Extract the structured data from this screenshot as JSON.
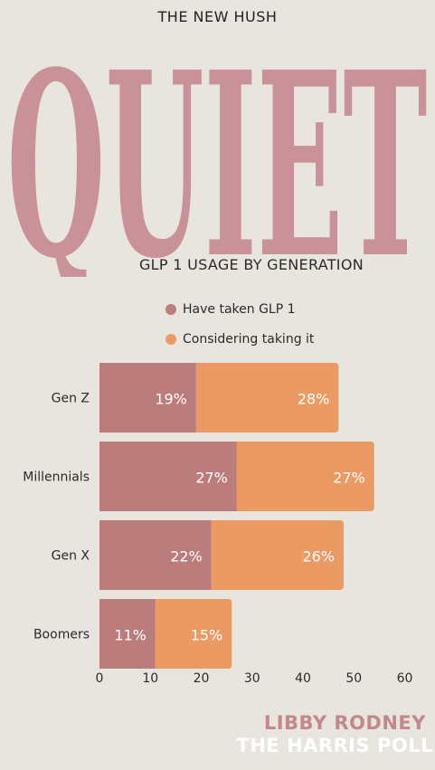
{
  "kicker": "THE NEW HUSH",
  "hero_word": "QUIET",
  "subtitle": "GLP 1 USAGE BY GENERATION",
  "credits": {
    "author": "LIBBY RODNEY",
    "source": "THE HARRIS POLL"
  },
  "colors": {
    "background": "#e8e5df",
    "hero": "#c99198",
    "taken": "#bb7c7c",
    "considering": "#ec9a64",
    "credit": "#c4878c"
  },
  "chart_data": {
    "type": "bar",
    "orientation": "horizontal",
    "stacked": true,
    "categories": [
      "Gen Z",
      "Millennials",
      "Gen X",
      "Boomers"
    ],
    "series": [
      {
        "name": "Have taken GLP 1",
        "values": [
          19,
          27,
          22,
          11
        ],
        "labels": [
          "19%",
          "27%",
          "22%",
          "11%"
        ],
        "color": "#bb7c7c"
      },
      {
        "name": "Considering taking it",
        "values": [
          28,
          27,
          26,
          15
        ],
        "labels": [
          "28%",
          "27%",
          "26%",
          "15%"
        ],
        "color": "#ec9a64"
      }
    ],
    "xlim": [
      0,
      60
    ],
    "xticks": [
      0,
      10,
      20,
      30,
      40,
      50,
      60
    ],
    "legend": "top",
    "grid": false
  }
}
